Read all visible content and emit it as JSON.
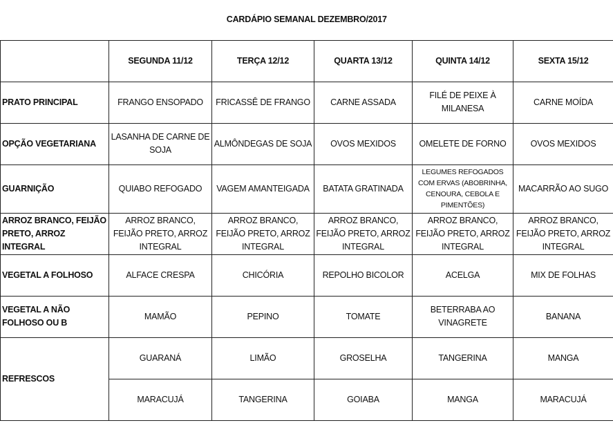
{
  "title": "CARDÁPIO SEMANAL DEZEMBRO/2017",
  "days": [
    "SEGUNDA  11/12",
    "TERÇA 12/12",
    "QUARTA 13/12",
    "QUINTA 14/12",
    "SEXTA 15/12"
  ],
  "rows": [
    {
      "label": "PRATO PRINCIPAL",
      "cells": [
        "FRANGO ENSOPADO",
        "FRICASSÊ DE FRANGO",
        "CARNE ASSADA",
        "FILÉ DE PEIXE À MILANESA",
        "CARNE MOÍDA"
      ]
    },
    {
      "label": "OPÇÃO VEGETARIANA",
      "cells": [
        "LASANHA DE CARNE DE SOJA",
        "ALMÔNDEGAS DE SOJA",
        "OVOS MEXIDOS",
        "OMELETE DE FORNO",
        "OVOS MEXIDOS"
      ]
    },
    {
      "label": "GUARNIÇÃO",
      "cells": [
        "QUIABO REFOGADO",
        "VAGEM AMANTEIGADA",
        "BATATA GRATINADA",
        "LEGUMES REFOGADOS COM ERVAS (ABOBRINHA, CENOURA, CEBOLA E PIMENTÕES)",
        "MACARRÃO AO SUGO"
      ]
    },
    {
      "label": "ARROZ BRANCO, FEIJÃO PRETO, ARROZ INTEGRAL",
      "cells": [
        "ARROZ BRANCO, FEIJÃO PRETO, ARROZ INTEGRAL",
        "ARROZ BRANCO, FEIJÃO PRETO, ARROZ INTEGRAL",
        "ARROZ BRANCO, FEIJÃO PRETO, ARROZ INTEGRAL",
        "ARROZ BRANCO, FEIJÃO PRETO, ARROZ INTEGRAL",
        "ARROZ BRANCO, FEIJÃO PRETO, ARROZ INTEGRAL"
      ]
    },
    {
      "label": "VEGETAL A FOLHOSO",
      "cells": [
        "ALFACE CRESPA",
        "CHICÓRIA",
        "REPOLHO BICOLOR",
        "ACELGA",
        "MIX DE FOLHAS"
      ]
    },
    {
      "label": "VEGETAL A NÃO FOLHOSO OU B",
      "cells": [
        "MAMÃO",
        "PEPINO",
        "TOMATE",
        "BETERRABA AO VINAGRETE",
        "BANANA"
      ]
    }
  ],
  "refrescos": {
    "label": "REFRESCOS",
    "row1": [
      "GUARANÁ",
      "LIMÃO",
      "GROSELHA",
      "TANGERINA",
      "MANGA"
    ],
    "row2": [
      "MARACUJÁ",
      "TANGERINA",
      "GOIABA",
      "MANGA",
      "MARACUJÁ"
    ]
  }
}
